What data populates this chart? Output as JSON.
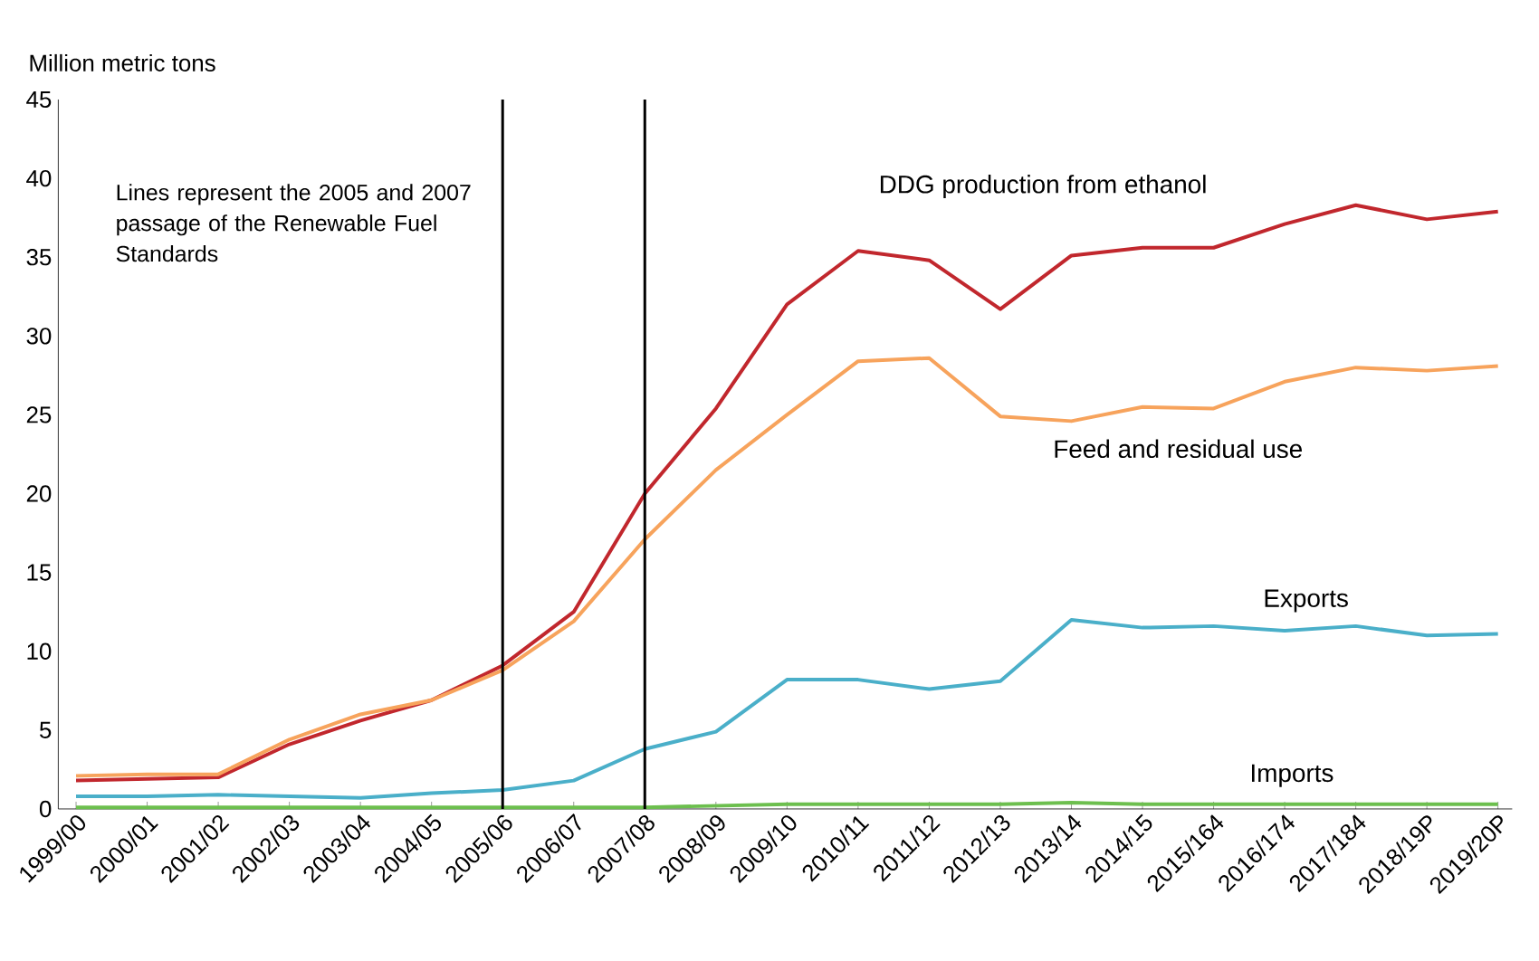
{
  "chart_data": {
    "type": "line",
    "ylabel": "Million metric tons",
    "categories": [
      "1999/00",
      "2000/01",
      "2001/02",
      "2002/03",
      "2003/04",
      "2004/05",
      "2005/06",
      "2006/07",
      "2007/08",
      "2008/09",
      "2009/10",
      "2010/11",
      "2011/12",
      "2012/13",
      "2013/14",
      "2014/15",
      "2015/164",
      "2016/174",
      "2017/184",
      "2018/19P",
      "2019/20P"
    ],
    "series": [
      {
        "name": "DDG production from ethanol",
        "color": "#c1272d",
        "values": [
          1.8,
          1.9,
          2.0,
          4.1,
          5.6,
          6.9,
          9.1,
          12.5,
          20.0,
          25.4,
          32.0,
          35.4,
          34.8,
          31.7,
          35.1,
          35.6,
          35.6,
          37.1,
          38.3,
          37.4,
          37.9
        ]
      },
      {
        "name": "Feed and residual use",
        "color": "#f7a35c",
        "values": [
          2.1,
          2.2,
          2.2,
          4.4,
          6.0,
          6.9,
          8.8,
          11.9,
          17.1,
          21.5,
          25.0,
          28.4,
          28.6,
          24.9,
          24.6,
          25.5,
          25.4,
          27.1,
          28.0,
          27.8,
          28.1
        ]
      },
      {
        "name": "Exports",
        "color": "#4aafc9",
        "values": [
          0.8,
          0.8,
          0.9,
          0.8,
          0.7,
          1.0,
          1.2,
          1.8,
          3.8,
          4.9,
          8.2,
          8.2,
          7.6,
          8.1,
          12.0,
          11.5,
          11.6,
          11.3,
          11.6,
          11.0,
          11.1
        ]
      },
      {
        "name": "Imports",
        "color": "#6cbf4e",
        "values": [
          0.1,
          0.1,
          0.1,
          0.1,
          0.1,
          0.1,
          0.1,
          0.1,
          0.1,
          0.2,
          0.3,
          0.3,
          0.3,
          0.3,
          0.4,
          0.3,
          0.3,
          0.3,
          0.3,
          0.3,
          0.3
        ]
      }
    ],
    "ylim": [
      0,
      45
    ],
    "yticks": [
      0,
      5,
      10,
      15,
      20,
      25,
      30,
      35,
      40,
      45
    ],
    "ref_lines": [
      {
        "axis": "x",
        "value": "2005/06",
        "color": "#000000"
      },
      {
        "axis": "x",
        "value": "2007/08",
        "color": "#000000"
      }
    ],
    "annotations": [
      "Lines represent the 2005 and 2007 passage of the Renewable Fuel Standards"
    ],
    "grid": false,
    "legend": false,
    "line_style": "solid"
  }
}
